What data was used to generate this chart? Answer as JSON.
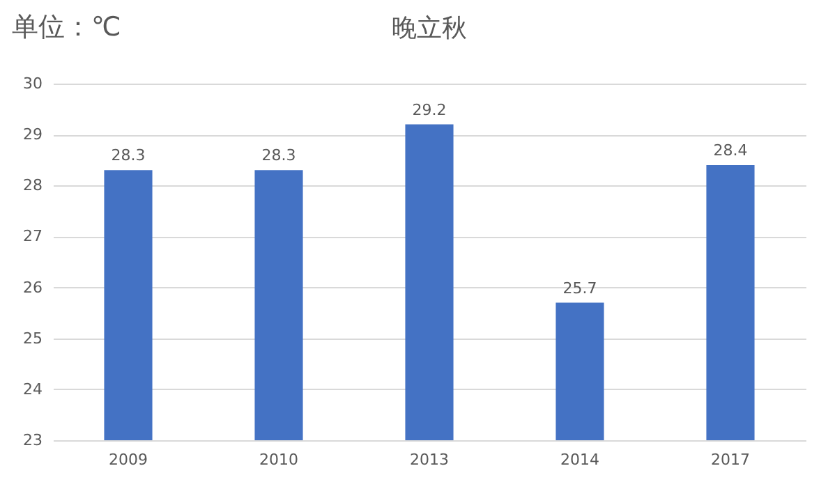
{
  "chart_data": {
    "type": "bar",
    "title": "晚立秋",
    "ylabel": "单位：℃",
    "categories": [
      "2009",
      "2010",
      "2013",
      "2014",
      "2017"
    ],
    "values": [
      28.3,
      28.3,
      29.2,
      25.7,
      28.4
    ],
    "color": "#4472c4",
    "ylim": [
      23,
      30
    ],
    "yticks": [
      23,
      24,
      25,
      26,
      27,
      28,
      29,
      30
    ],
    "grid": "y",
    "data_labels": true
  }
}
